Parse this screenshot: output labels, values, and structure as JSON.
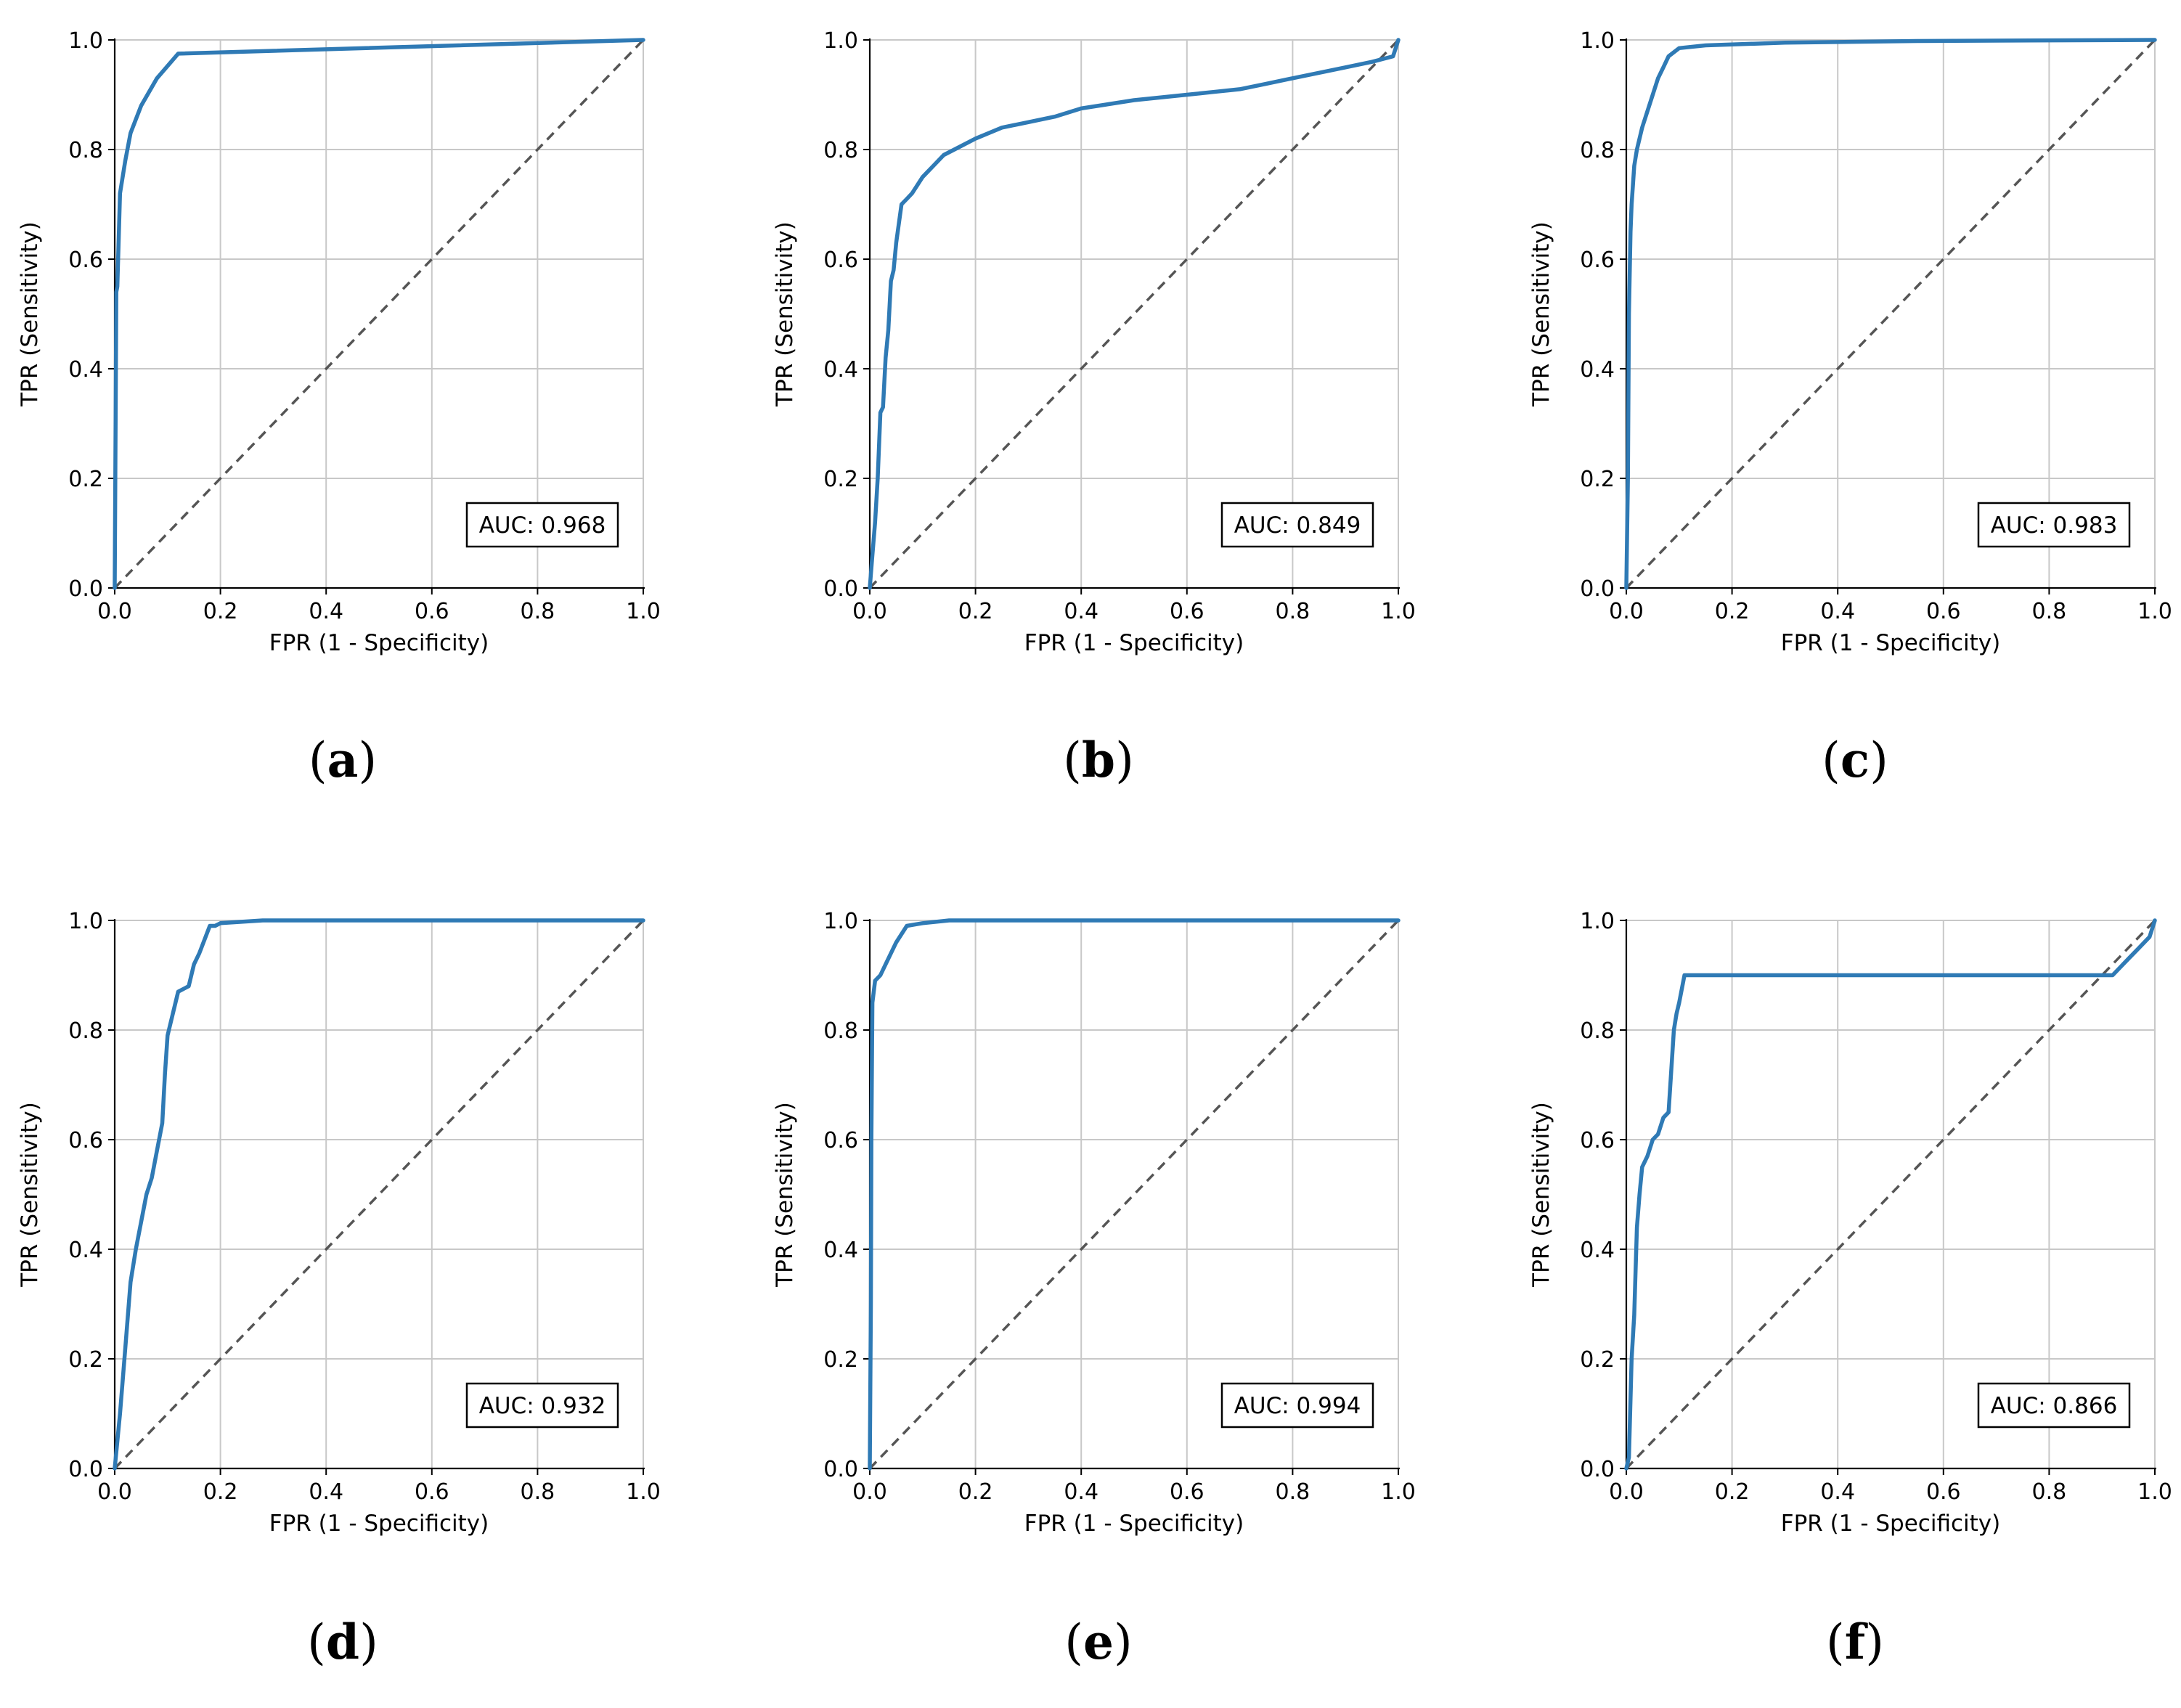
{
  "colors": {
    "roc": "#2f7ab5",
    "diagonal": "#555555",
    "grid": "#c8c8c8",
    "axis": "#000000"
  },
  "chart_data": [
    {
      "type": "line",
      "panel": "a",
      "xlabel": "FPR (1 - Specificity)",
      "ylabel": "TPR (Sensitivity)",
      "xlim": [
        0,
        1
      ],
      "ylim": [
        0,
        1
      ],
      "xticks": [
        "0.0",
        "0.2",
        "0.4",
        "0.6",
        "0.8",
        "1.0"
      ],
      "yticks": [
        "0.0",
        "0.2",
        "0.4",
        "0.6",
        "0.8",
        "1.0"
      ],
      "grid": true,
      "legend_position": "bottom-right",
      "auc_label": "AUC: 0.968",
      "series": [
        {
          "name": "ROC",
          "x": [
            0,
            0.003,
            0.005,
            0.01,
            0.02,
            0.03,
            0.05,
            0.08,
            0.12,
            1.0
          ],
          "y": [
            0,
            0.54,
            0.55,
            0.72,
            0.78,
            0.83,
            0.88,
            0.93,
            0.975,
            1.0
          ]
        },
        {
          "name": "chance",
          "x": [
            0,
            1
          ],
          "y": [
            0,
            1
          ]
        }
      ]
    },
    {
      "type": "line",
      "panel": "b",
      "xlabel": "FPR (1 - Specificity)",
      "ylabel": "TPR (Sensitivity)",
      "xlim": [
        0,
        1
      ],
      "ylim": [
        0,
        1
      ],
      "xticks": [
        "0.0",
        "0.2",
        "0.4",
        "0.6",
        "0.8",
        "1.0"
      ],
      "yticks": [
        "0.0",
        "0.2",
        "0.4",
        "0.6",
        "0.8",
        "1.0"
      ],
      "grid": true,
      "legend_position": "bottom-right",
      "auc_label": "AUC: 0.849",
      "series": [
        {
          "name": "ROC",
          "x": [
            0,
            0.005,
            0.01,
            0.015,
            0.02,
            0.025,
            0.03,
            0.035,
            0.04,
            0.045,
            0.05,
            0.06,
            0.07,
            0.08,
            0.1,
            0.12,
            0.14,
            0.16,
            0.2,
            0.25,
            0.3,
            0.35,
            0.4,
            0.5,
            0.6,
            0.65,
            0.7,
            0.75,
            0.8,
            0.85,
            0.9,
            0.95,
            0.99,
            1.0
          ],
          "y": [
            0,
            0.06,
            0.12,
            0.2,
            0.32,
            0.33,
            0.42,
            0.47,
            0.56,
            0.58,
            0.63,
            0.7,
            0.71,
            0.72,
            0.75,
            0.77,
            0.79,
            0.8,
            0.82,
            0.84,
            0.85,
            0.86,
            0.875,
            0.89,
            0.9,
            0.905,
            0.91,
            0.92,
            0.93,
            0.94,
            0.95,
            0.96,
            0.97,
            1.0
          ]
        },
        {
          "name": "chance",
          "x": [
            0,
            1
          ],
          "y": [
            0,
            1
          ]
        }
      ]
    },
    {
      "type": "line",
      "panel": "c",
      "xlabel": "FPR (1 - Specificity)",
      "ylabel": "TPR (Sensitivity)",
      "xlim": [
        0,
        1
      ],
      "ylim": [
        0,
        1
      ],
      "xticks": [
        "0.0",
        "0.2",
        "0.4",
        "0.6",
        "0.8",
        "1.0"
      ],
      "yticks": [
        "0.0",
        "0.2",
        "0.4",
        "0.6",
        "0.8",
        "1.0"
      ],
      "grid": true,
      "legend_position": "bottom-right",
      "auc_label": "AUC: 0.983",
      "series": [
        {
          "name": "ROC",
          "x": [
            0,
            0.003,
            0.005,
            0.008,
            0.01,
            0.015,
            0.02,
            0.03,
            0.04,
            0.05,
            0.06,
            0.07,
            0.08,
            0.1,
            0.15,
            0.3,
            0.55,
            1.0
          ],
          "y": [
            0,
            0.2,
            0.5,
            0.65,
            0.7,
            0.77,
            0.8,
            0.84,
            0.87,
            0.9,
            0.93,
            0.95,
            0.97,
            0.985,
            0.99,
            0.995,
            0.998,
            1.0
          ]
        },
        {
          "name": "chance",
          "x": [
            0,
            1
          ],
          "y": [
            0,
            1
          ]
        }
      ]
    },
    {
      "type": "line",
      "panel": "d",
      "xlabel": "FPR (1 - Specificity)",
      "ylabel": "TPR (Sensitivity)",
      "xlim": [
        0,
        1
      ],
      "ylim": [
        0,
        1
      ],
      "xticks": [
        "0.0",
        "0.2",
        "0.4",
        "0.6",
        "0.8",
        "1.0"
      ],
      "yticks": [
        "0.0",
        "0.2",
        "0.4",
        "0.6",
        "0.8",
        "1.0"
      ],
      "grid": true,
      "legend_position": "bottom-right",
      "auc_label": "AUC: 0.932",
      "series": [
        {
          "name": "ROC",
          "x": [
            0,
            0.01,
            0.02,
            0.03,
            0.04,
            0.05,
            0.06,
            0.07,
            0.08,
            0.09,
            0.095,
            0.1,
            0.11,
            0.12,
            0.14,
            0.15,
            0.16,
            0.18,
            0.19,
            0.2,
            0.28,
            1.0
          ],
          "y": [
            0,
            0.1,
            0.22,
            0.34,
            0.4,
            0.45,
            0.5,
            0.53,
            0.58,
            0.63,
            0.72,
            0.79,
            0.83,
            0.87,
            0.88,
            0.92,
            0.94,
            0.99,
            0.99,
            0.995,
            1.0,
            1.0
          ]
        },
        {
          "name": "chance",
          "x": [
            0,
            1
          ],
          "y": [
            0,
            1
          ]
        }
      ]
    },
    {
      "type": "line",
      "panel": "e",
      "xlabel": "FPR (1 - Specificity)",
      "ylabel": "TPR (Sensitivity)",
      "xlim": [
        0,
        1
      ],
      "ylim": [
        0,
        1
      ],
      "xticks": [
        "0.0",
        "0.2",
        "0.4",
        "0.6",
        "0.8",
        "1.0"
      ],
      "yticks": [
        "0.0",
        "0.2",
        "0.4",
        "0.6",
        "0.8",
        "1.0"
      ],
      "grid": true,
      "legend_position": "bottom-right",
      "auc_label": "AUC: 0.994",
      "series": [
        {
          "name": "ROC",
          "x": [
            0,
            0.002,
            0.003,
            0.005,
            0.01,
            0.02,
            0.03,
            0.04,
            0.05,
            0.07,
            0.1,
            0.15,
            1.0
          ],
          "y": [
            0,
            0.3,
            0.6,
            0.85,
            0.89,
            0.9,
            0.92,
            0.94,
            0.96,
            0.99,
            0.995,
            1.0,
            1.0
          ]
        },
        {
          "name": "chance",
          "x": [
            0,
            1
          ],
          "y": [
            0,
            1
          ]
        }
      ]
    },
    {
      "type": "line",
      "panel": "f",
      "xlabel": "FPR (1 - Specificity)",
      "ylabel": "TPR (Sensitivity)",
      "xlim": [
        0,
        1
      ],
      "ylim": [
        0,
        1
      ],
      "xticks": [
        "0.0",
        "0.2",
        "0.4",
        "0.6",
        "0.8",
        "1.0"
      ],
      "yticks": [
        "0.0",
        "0.2",
        "0.4",
        "0.6",
        "0.8",
        "1.0"
      ],
      "grid": true,
      "legend_position": "bottom-right",
      "auc_label": "AUC: 0.866",
      "series": [
        {
          "name": "ROC",
          "x": [
            0,
            0.005,
            0.01,
            0.015,
            0.02,
            0.025,
            0.03,
            0.04,
            0.05,
            0.06,
            0.07,
            0.08,
            0.09,
            0.095,
            0.1,
            0.11,
            0.92,
            0.95,
            0.97,
            0.99,
            1.0
          ],
          "y": [
            0,
            0.02,
            0.2,
            0.28,
            0.44,
            0.5,
            0.55,
            0.57,
            0.6,
            0.61,
            0.64,
            0.65,
            0.8,
            0.83,
            0.85,
            0.9,
            0.9,
            0.93,
            0.95,
            0.97,
            1.0
          ]
        },
        {
          "name": "chance",
          "x": [
            0,
            1
          ],
          "y": [
            0,
            1
          ]
        }
      ]
    }
  ],
  "panel_labels": [
    {
      "open": "(",
      "letter": "a",
      "close": ")"
    },
    {
      "open": "(",
      "letter": "b",
      "close": ")"
    },
    {
      "open": "(",
      "letter": "c",
      "close": ")"
    },
    {
      "open": "(",
      "letter": "d",
      "close": ")"
    },
    {
      "open": "(",
      "letter": "e",
      "close": ")"
    },
    {
      "open": "(",
      "letter": "f",
      "close": ")"
    }
  ]
}
